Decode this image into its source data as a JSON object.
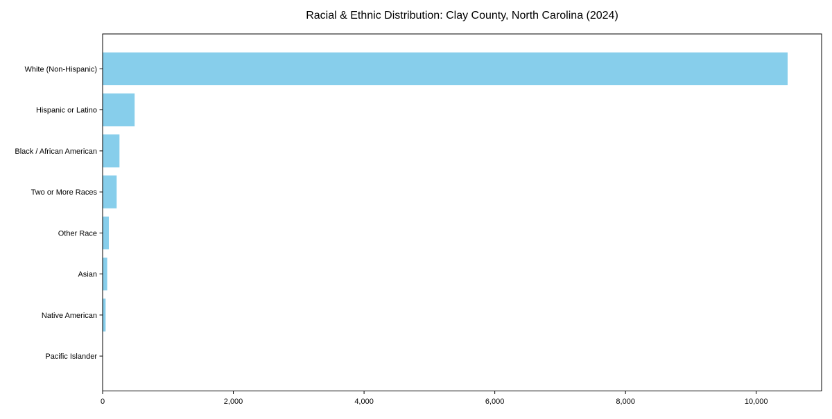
{
  "chart_data": {
    "type": "bar",
    "orientation": "horizontal",
    "title": "Racial & Ethnic Distribution: Clay County, North Carolina (2024)",
    "categories": [
      "White (Non-Hispanic)",
      "Hispanic or Latino",
      "Black / African American",
      "Two or More Races",
      "Other Race",
      "Asian",
      "Native American",
      "Pacific Islander"
    ],
    "values": [
      10480,
      490,
      258,
      215,
      95,
      70,
      46,
      0
    ],
    "xlabel": "",
    "ylabel": "",
    "xlim": [
      0,
      11000
    ],
    "xticks": [
      0,
      2000,
      4000,
      6000,
      8000,
      10000
    ],
    "xtick_labels": [
      "0",
      "2,000",
      "4,000",
      "6,000",
      "8,000",
      "10,000"
    ],
    "bar_color": "#87CEEB",
    "axis_color": "#000000",
    "grid": false,
    "legend_position": "none"
  }
}
